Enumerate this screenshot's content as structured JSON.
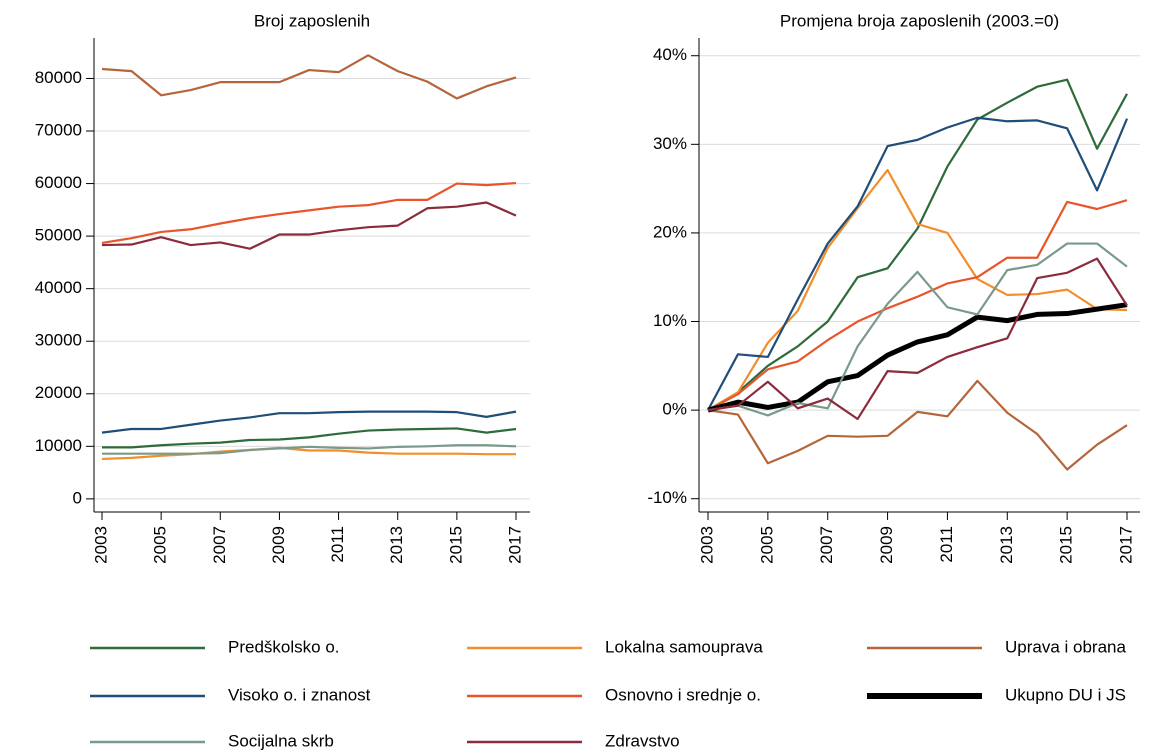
{
  "chart_data": [
    {
      "type": "line",
      "title": "Broj zaposlenih",
      "x": [
        2003,
        2004,
        2005,
        2006,
        2007,
        2008,
        2009,
        2010,
        2011,
        2012,
        2013,
        2014,
        2015,
        2016,
        2017
      ],
      "xlim": [
        2003,
        2017
      ],
      "xticks": [
        2003,
        2005,
        2007,
        2009,
        2011,
        2013,
        2015,
        2017
      ],
      "ylim": [
        -2500,
        87700
      ],
      "yticks": [
        0,
        10000,
        20000,
        30000,
        40000,
        50000,
        60000,
        70000,
        80000
      ],
      "grid": true,
      "series": [
        {
          "name": "Predškolsko o.",
          "color": "#2e6b3a",
          "values": [
            9800,
            9800,
            10200,
            10500,
            10700,
            11200,
            11300,
            11700,
            12400,
            13000,
            13200,
            13300,
            13400,
            12600,
            13300
          ]
        },
        {
          "name": "Lokalna samouprava",
          "color": "#f28e2b",
          "values": [
            7600,
            7800,
            8200,
            8500,
            9000,
            9300,
            9700,
            9200,
            9200,
            8800,
            8600,
            8600,
            8600,
            8500,
            8500
          ]
        },
        {
          "name": "Uprava i obrana",
          "color": "#b5653a",
          "values": [
            81800,
            81400,
            76800,
            77800,
            79300,
            79300,
            79300,
            81600,
            81200,
            84400,
            81400,
            79400,
            76200,
            78500,
            80200
          ]
        },
        {
          "name": "Visoko o. i znanost",
          "color": "#1f4e79",
          "values": [
            12600,
            13300,
            13300,
            14100,
            14900,
            15500,
            16300,
            16300,
            16500,
            16600,
            16600,
            16600,
            16500,
            15600,
            16600
          ]
        },
        {
          "name": "Osnovno i srednje o.",
          "color": "#e8552b",
          "values": [
            48700,
            49600,
            50800,
            51300,
            52400,
            53400,
            54200,
            54900,
            55600,
            55900,
            56900,
            56900,
            60000,
            59700,
            60100
          ]
        },
        {
          "name": "Socijalna skrb",
          "color": "#7a9a8a",
          "values": [
            8600,
            8600,
            8600,
            8600,
            8700,
            9300,
            9600,
            9900,
            9700,
            9600,
            9900,
            10000,
            10200,
            10200,
            10000
          ]
        },
        {
          "name": "Zdravstvo",
          "color": "#8b2b3c",
          "values": [
            48300,
            48400,
            49800,
            48300,
            48800,
            47600,
            50300,
            50300,
            51100,
            51700,
            52000,
            55300,
            55600,
            56400,
            53900
          ]
        }
      ]
    },
    {
      "type": "line",
      "title": "Promjena broja zaposlenih (2003.=0)",
      "x": [
        2003,
        2004,
        2005,
        2006,
        2007,
        2008,
        2009,
        2010,
        2011,
        2012,
        2013,
        2014,
        2015,
        2016,
        2017
      ],
      "xlim": [
        2003,
        2017
      ],
      "xticks": [
        2003,
        2005,
        2007,
        2009,
        2011,
        2013,
        2015,
        2017
      ],
      "ylim": [
        -11.5,
        42
      ],
      "yticks": [
        {
          "value": -10,
          "label": "-10%"
        },
        {
          "value": 0,
          "label": "0%"
        },
        {
          "value": 10,
          "label": "10%"
        },
        {
          "value": 20,
          "label": "20%"
        },
        {
          "value": 30,
          "label": "30%"
        },
        {
          "value": 40,
          "label": "40%"
        }
      ],
      "grid": true,
      "series": [
        {
          "name": "Predškolsko o.",
          "color": "#2e6b3a",
          "values": [
            0,
            2,
            5,
            7.2,
            10,
            15,
            16,
            20.5,
            27.5,
            32.8,
            34.7,
            36.5,
            37.3,
            29.5,
            35.7
          ]
        },
        {
          "name": "Lokalna samouprava",
          "color": "#f28e2b",
          "values": [
            0,
            2,
            7.6,
            11.2,
            18.3,
            22.8,
            27.1,
            21,
            20,
            14.8,
            13,
            13.1,
            13.6,
            11.4,
            11.3
          ]
        },
        {
          "name": "Uprava i obrana",
          "color": "#b5653a",
          "values": [
            0,
            -0.5,
            -6,
            -4.6,
            -2.9,
            -3,
            -2.9,
            -0.2,
            -0.7,
            3.3,
            -0.3,
            -2.7,
            -6.7,
            -3.9,
            -1.7
          ]
        },
        {
          "name": "Visoko o. i znanost",
          "color": "#1f4e79",
          "values": [
            0,
            6.3,
            6,
            12.5,
            18.8,
            23,
            29.8,
            30.5,
            31.9,
            33,
            32.6,
            32.7,
            31.8,
            24.8,
            32.9
          ]
        },
        {
          "name": "Osnovno i srednje o.",
          "color": "#e8552b",
          "values": [
            0,
            1.8,
            4.6,
            5.5,
            7.9,
            10,
            11.5,
            12.8,
            14.3,
            15,
            17.2,
            17.2,
            23.5,
            22.7,
            23.7
          ]
        },
        {
          "name": "Ukupno DU i JS",
          "color": "#000000",
          "values": [
            0,
            0.9,
            0.3,
            0.9,
            3.2,
            3.9,
            6.2,
            7.7,
            8.5,
            10.5,
            10.1,
            10.8,
            10.9,
            11.4,
            11.9
          ]
        },
        {
          "name": "Socijalna skrb",
          "color": "#7a9a8a",
          "values": [
            0,
            0.5,
            -0.6,
            0.8,
            0.2,
            7.2,
            12,
            15.6,
            11.6,
            10.8,
            15.8,
            16.4,
            18.8,
            18.8,
            16.2
          ]
        },
        {
          "name": "Zdravstvo",
          "color": "#8b2b3c",
          "values": [
            0,
            0.5,
            3.2,
            0.2,
            1.3,
            -1,
            4.4,
            4.2,
            6,
            7.1,
            8.1,
            14.9,
            15.5,
            17.1,
            11.8
          ]
        }
      ]
    }
  ]
}
